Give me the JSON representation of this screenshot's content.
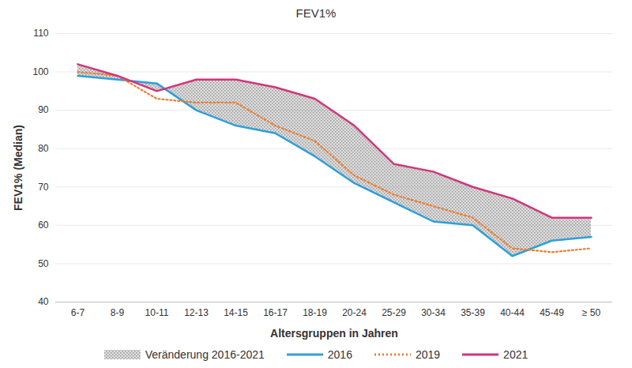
{
  "chart_data": {
    "type": "line",
    "title": "FEV1%",
    "x_label": "Altersgruppen in Jahren",
    "y_label": "FEV1% (Median)",
    "categories": [
      "6-7",
      "8-9",
      "10-11",
      "12-13",
      "14-15",
      "16-17",
      "18-19",
      "20-24",
      "25-29",
      "30-34",
      "35-39",
      "40-44",
      "45-49",
      "≥ 50"
    ],
    "series": [
      {
        "name": "2016",
        "color": "#2f9fd8",
        "line_style": "solid",
        "values": [
          99,
          98,
          97,
          90,
          86,
          84,
          78,
          71,
          66,
          61,
          60,
          52,
          56,
          57
        ]
      },
      {
        "name": "2019",
        "color": "#ee7d31",
        "line_style": "dotted",
        "values": [
          100,
          99,
          93,
          92,
          92,
          86,
          82,
          73,
          68,
          65,
          62,
          54,
          53,
          54
        ]
      },
      {
        "name": "2021",
        "color": "#d6337a",
        "line_style": "solid",
        "values": [
          102,
          99,
          95,
          98,
          98,
          96,
          93,
          86,
          76,
          74,
          70,
          67,
          62,
          62
        ]
      }
    ],
    "band": {
      "name": "Veränderung 2016-2021",
      "lower": "2016",
      "upper": "2021",
      "color": "#9a9a9a"
    },
    "ylim": [
      40,
      110
    ],
    "yticks": [
      40,
      50,
      60,
      70,
      80,
      90,
      100,
      110
    ],
    "grid": true,
    "legend": "bottom"
  }
}
